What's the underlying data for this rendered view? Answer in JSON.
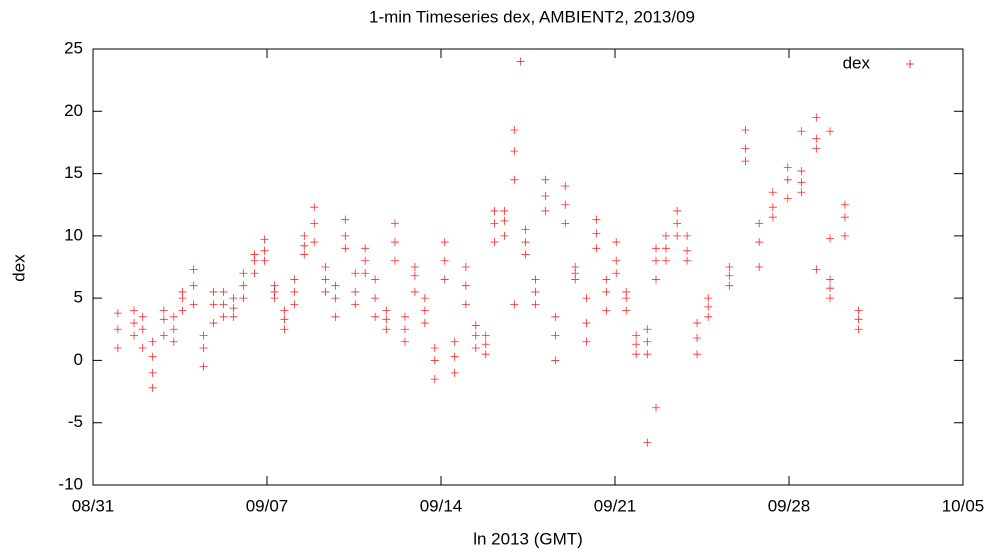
{
  "chart_data": {
    "type": "scatter",
    "title": "1-min Timeseries dex, AMBIENT2, 2013/09",
    "xlabel": "ln 2013 (GMT)",
    "ylabel": "dex",
    "xlim": [
      0,
      35
    ],
    "xticks": [
      {
        "value": 0,
        "label": "08/31"
      },
      {
        "value": 7,
        "label": "09/07"
      },
      {
        "value": 14,
        "label": "09/14"
      },
      {
        "value": 21,
        "label": "09/21"
      },
      {
        "value": 28,
        "label": "09/28"
      },
      {
        "value": 35,
        "label": "10/05"
      }
    ],
    "ylim": [
      -10,
      25
    ],
    "yticks": [
      -10,
      -5,
      0,
      5,
      10,
      15,
      20,
      25
    ],
    "grid": false,
    "legend": "top-right",
    "series": [
      {
        "name": "dex",
        "color": "#ff0000",
        "x": [
          1.0,
          1.0,
          1.0,
          1.65,
          1.65,
          1.65,
          2.0,
          2.0,
          2.0,
          2.4,
          2.4,
          2.4,
          2.85,
          2.85,
          2.85,
          3.25,
          3.25,
          3.25,
          3.6,
          3.6,
          3.6,
          4.05,
          4.05,
          4.05,
          4.45,
          4.45,
          4.45,
          4.85,
          4.85,
          4.85,
          5.25,
          5.25,
          5.25,
          5.65,
          5.65,
          5.65,
          6.05,
          6.05,
          6.05,
          6.5,
          6.5,
          6.5,
          6.9,
          6.9,
          6.9,
          7.3,
          7.3,
          7.3,
          7.7,
          7.7,
          7.7,
          8.1,
          8.1,
          8.1,
          8.5,
          8.5,
          8.5,
          8.9,
          8.9,
          8.9,
          9.35,
          9.35,
          9.35,
          9.75,
          9.75,
          9.75,
          10.15,
          10.15,
          10.15,
          10.55,
          10.55,
          10.55,
          10.95,
          10.95,
          10.95,
          11.35,
          11.35,
          11.35,
          11.8,
          11.8,
          11.8,
          12.15,
          12.15,
          12.15,
          12.55,
          12.55,
          12.55,
          12.95,
          12.95,
          12.95,
          13.35,
          13.35,
          13.35,
          13.75,
          13.75,
          13.75,
          14.15,
          14.15,
          14.15,
          14.55,
          14.55,
          14.55,
          15.0,
          15.0,
          15.0,
          15.4,
          15.4,
          15.4,
          15.8,
          15.8,
          15.8,
          16.15,
          16.15,
          16.15,
          16.55,
          16.55,
          16.55,
          16.95,
          16.95,
          16.95,
          17.4,
          17.4,
          17.4,
          17.8,
          17.8,
          17.8,
          18.2,
          18.2,
          18.2,
          18.6,
          18.6,
          18.6,
          19.0,
          19.0,
          19.0,
          19.4,
          19.4,
          19.4,
          19.85,
          19.85,
          19.85,
          20.25,
          20.25,
          20.25,
          20.65,
          20.65,
          20.65,
          21.05,
          21.05,
          21.05,
          21.45,
          21.45,
          21.45,
          21.85,
          21.85,
          21.85,
          22.3,
          22.3,
          22.3,
          22.65,
          22.65,
          22.65,
          23.05,
          23.05,
          23.05,
          23.5,
          23.5,
          23.5,
          23.9,
          23.9,
          23.9,
          24.3,
          24.3,
          24.3,
          24.75,
          24.75,
          24.75,
          25.6,
          25.6,
          25.6,
          26.25,
          26.25,
          26.25,
          26.8,
          26.8,
          26.8,
          27.35,
          27.35,
          27.35,
          27.95,
          27.95,
          27.95,
          28.5,
          28.5,
          28.5,
          29.1,
          29.1,
          29.1,
          29.65,
          29.65,
          29.65,
          30.25,
          30.25,
          30.25,
          30.8,
          30.8,
          30.8,
          2.4,
          17.2,
          22.3,
          22.65,
          16.95,
          28.5,
          29.65,
          29.65,
          29.1
        ],
        "values": [
          1,
          2.5,
          3.8,
          2,
          3,
          4,
          1,
          2.5,
          3.5,
          -1,
          0.3,
          1.5,
          2,
          3.3,
          4,
          1.5,
          2.5,
          3.5,
          4,
          5,
          5.5,
          4.5,
          6,
          7.3,
          -0.5,
          1,
          2,
          3,
          4.5,
          5.5,
          3.5,
          4.5,
          5.5,
          3.5,
          4.2,
          5,
          5,
          6,
          7,
          7,
          8,
          8.5,
          8,
          8.8,
          9.7,
          5,
          5.5,
          6,
          2.5,
          3.3,
          4,
          4.5,
          5.5,
          6.5,
          8.5,
          9.2,
          10,
          9.5,
          11,
          12.3,
          5.5,
          6.5,
          7.5,
          3.5,
          5,
          6,
          9,
          10,
          11.3,
          4.5,
          5.5,
          7,
          7,
          8,
          9,
          3.5,
          5,
          6.5,
          2.5,
          3.3,
          4,
          8,
          9.5,
          11,
          1.5,
          2.5,
          3.5,
          5.5,
          6.8,
          7.5,
          3,
          4,
          5,
          -1.5,
          0,
          1,
          6.5,
          8,
          9.5,
          -1,
          0.3,
          1.5,
          4.5,
          6,
          7.5,
          1,
          2,
          2.8,
          0.5,
          1.3,
          2,
          9.5,
          11,
          12,
          10,
          11.2,
          12,
          14.5,
          16.8,
          18.5,
          8.5,
          9.5,
          10.5,
          4.5,
          5.5,
          6.5,
          12,
          13.2,
          14.5,
          0,
          2,
          3.5,
          11,
          12.5,
          14,
          6.5,
          7,
          7.5,
          1.5,
          3,
          5,
          9,
          10.2,
          11.3,
          4,
          5.5,
          6.5,
          7,
          8,
          9.5,
          4,
          5,
          5.5,
          0.5,
          1.3,
          2,
          0.5,
          1.5,
          2.5,
          6.5,
          8,
          9,
          8,
          9,
          10,
          10,
          11,
          12,
          8,
          8.8,
          10,
          0.5,
          1.8,
          3,
          3.5,
          4.3,
          5,
          6,
          6.8,
          7.5,
          16,
          17,
          18.5,
          7.5,
          9.5,
          11,
          11.5,
          12.3,
          13.5,
          13,
          14.5,
          15.5,
          13.5,
          14.3,
          15.2,
          17,
          17.8,
          19.5,
          5,
          5.8,
          6.5,
          10,
          11.5,
          12.5,
          2.5,
          3.3,
          4,
          -2.2,
          24,
          -6.6,
          -3.8,
          4.5,
          18.4,
          18.4,
          9.8,
          7.3
        ]
      }
    ]
  }
}
